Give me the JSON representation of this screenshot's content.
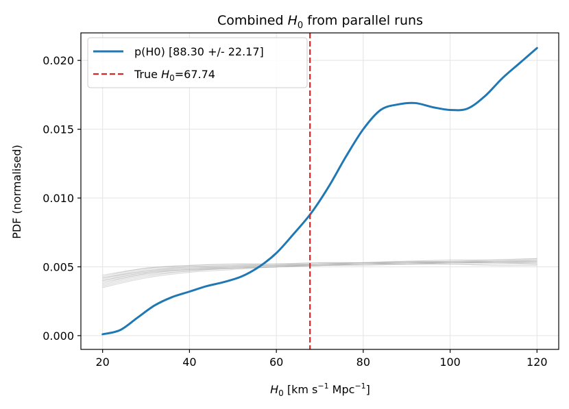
{
  "chart_data": {
    "type": "line",
    "title": "Combined H0 from parallel runs",
    "title_parts": {
      "pre": "Combined ",
      "sym": "H",
      "sub": "0",
      "post": " from parallel runs"
    },
    "xlabel": "H0 [km s^-1 Mpc^-1]",
    "xlabel_parts": {
      "sym": "H",
      "sub": "0",
      "unit1": " [km s",
      "exp1": "−1",
      "unit2": " Mpc",
      "exp2": "−1",
      "close": "]"
    },
    "ylabel": "PDF (normalised)",
    "xlim": [
      15,
      125
    ],
    "ylim": [
      -0.001,
      0.022
    ],
    "xticks": [
      20,
      40,
      60,
      80,
      100,
      120
    ],
    "yticks": [
      0.0,
      0.005,
      0.01,
      0.015,
      0.02
    ],
    "xtick_labels": [
      "20",
      "40",
      "60",
      "80",
      "100",
      "120"
    ],
    "ytick_labels": [
      "0.000",
      "0.005",
      "0.010",
      "0.015",
      "0.020"
    ],
    "grid": true,
    "legend_position": "top-left",
    "series": [
      {
        "name": "p(H0) [88.30 +/- 22.17]",
        "color": "#1f77b4",
        "style": "solid",
        "x": [
          20,
          24,
          28,
          32,
          36,
          40,
          44,
          48,
          52,
          56,
          60,
          64,
          68,
          72,
          76,
          80,
          84,
          88,
          92,
          96,
          100,
          104,
          108,
          112,
          116,
          120
        ],
        "y": [
          0.0001,
          0.0004,
          0.0013,
          0.0022,
          0.0028,
          0.0032,
          0.0036,
          0.0039,
          0.0043,
          0.005,
          0.006,
          0.0074,
          0.0089,
          0.0108,
          0.013,
          0.015,
          0.0164,
          0.0168,
          0.0169,
          0.0166,
          0.0164,
          0.0165,
          0.0174,
          0.0187,
          0.0198,
          0.0209
        ]
      }
    ],
    "reference_line": {
      "name": "True H0=67.74",
      "label_parts": {
        "pre": "True ",
        "sym": "H",
        "sub": "0",
        "post": "=67.74"
      },
      "x": 67.74,
      "color": "#d62728",
      "style": "dashed"
    },
    "parallel_runs": {
      "color": "#b0b0b0",
      "x": [
        20,
        30,
        40,
        50,
        60,
        70,
        80,
        90,
        100,
        110,
        120
      ],
      "runs": [
        [
          0.0036,
          0.0043,
          0.0047,
          0.0049,
          0.005,
          0.0051,
          0.0052,
          0.0053,
          0.0053,
          0.0053,
          0.0054
        ],
        [
          0.0038,
          0.0045,
          0.0048,
          0.0049,
          0.005,
          0.0051,
          0.0052,
          0.0052,
          0.0053,
          0.0053,
          0.0053
        ],
        [
          0.004,
          0.0046,
          0.0048,
          0.0049,
          0.005,
          0.0051,
          0.0051,
          0.0052,
          0.0052,
          0.0052,
          0.0052
        ],
        [
          0.0041,
          0.0047,
          0.0049,
          0.005,
          0.0051,
          0.0051,
          0.0052,
          0.0052,
          0.0053,
          0.0053,
          0.0053
        ],
        [
          0.0042,
          0.0048,
          0.005,
          0.0051,
          0.0051,
          0.0052,
          0.0052,
          0.0053,
          0.0053,
          0.0054,
          0.0055
        ],
        [
          0.0043,
          0.0049,
          0.0051,
          0.0052,
          0.0052,
          0.0052,
          0.0053,
          0.0053,
          0.0054,
          0.0054,
          0.0055
        ],
        [
          0.0039,
          0.0045,
          0.0048,
          0.005,
          0.0051,
          0.0052,
          0.0053,
          0.0054,
          0.0054,
          0.0055,
          0.0056
        ],
        [
          0.0044,
          0.0049,
          0.0051,
          0.0052,
          0.0052,
          0.0053,
          0.0053,
          0.0054,
          0.0053,
          0.0053,
          0.0052
        ],
        [
          0.0037,
          0.0044,
          0.0047,
          0.0049,
          0.005,
          0.0052,
          0.0053,
          0.0054,
          0.0055,
          0.0055,
          0.0056
        ],
        [
          0.004,
          0.0046,
          0.0049,
          0.005,
          0.0051,
          0.0052,
          0.0052,
          0.0052,
          0.0052,
          0.0051,
          0.0051
        ],
        [
          0.0035,
          0.0042,
          0.0046,
          0.0048,
          0.005,
          0.0051,
          0.0052,
          0.0053,
          0.0054,
          0.0054,
          0.0054
        ],
        [
          0.0042,
          0.0047,
          0.005,
          0.0051,
          0.0052,
          0.0053,
          0.0053,
          0.0053,
          0.0053,
          0.0054,
          0.0054
        ]
      ]
    }
  }
}
